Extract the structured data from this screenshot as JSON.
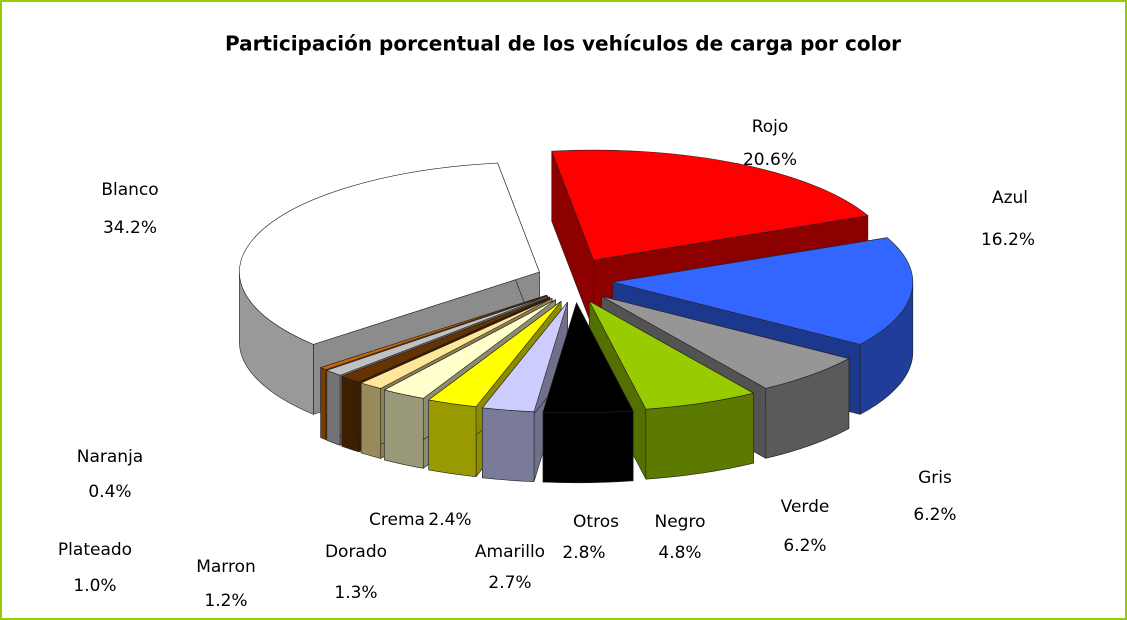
{
  "chart_data": {
    "type": "pie3d",
    "title": "Participación porcentual de los vehículos de carga por color",
    "categories": [
      "Rojo",
      "Azul",
      "Gris",
      "Verde",
      "Negro",
      "Otros",
      "Amarillo",
      "Crema",
      "Dorado",
      "Marron",
      "Plateado",
      "Naranja",
      "Blanco"
    ],
    "values": [
      20.6,
      16.2,
      6.2,
      6.2,
      4.8,
      2.8,
      2.7,
      2.4,
      1.3,
      1.2,
      1.0,
      0.4,
      34.2
    ],
    "value_labels": [
      "20.6%",
      "16.2%",
      "6.2%",
      "6.2%",
      "4.8%",
      "2.8%",
      "2.7%",
      "2.4%",
      "1.3%",
      "1.2%",
      "1.0%",
      "0.4%",
      "34.2%"
    ],
    "colors": [
      "#ff0000",
      "#3366ff",
      "#969696",
      "#99cc00",
      "#000000",
      "#ccccff",
      "#ffff00",
      "#ffffcc",
      "#ffe699",
      "#663300",
      "#c0c0c0",
      "#cc6600",
      "#ffffff"
    ]
  }
}
